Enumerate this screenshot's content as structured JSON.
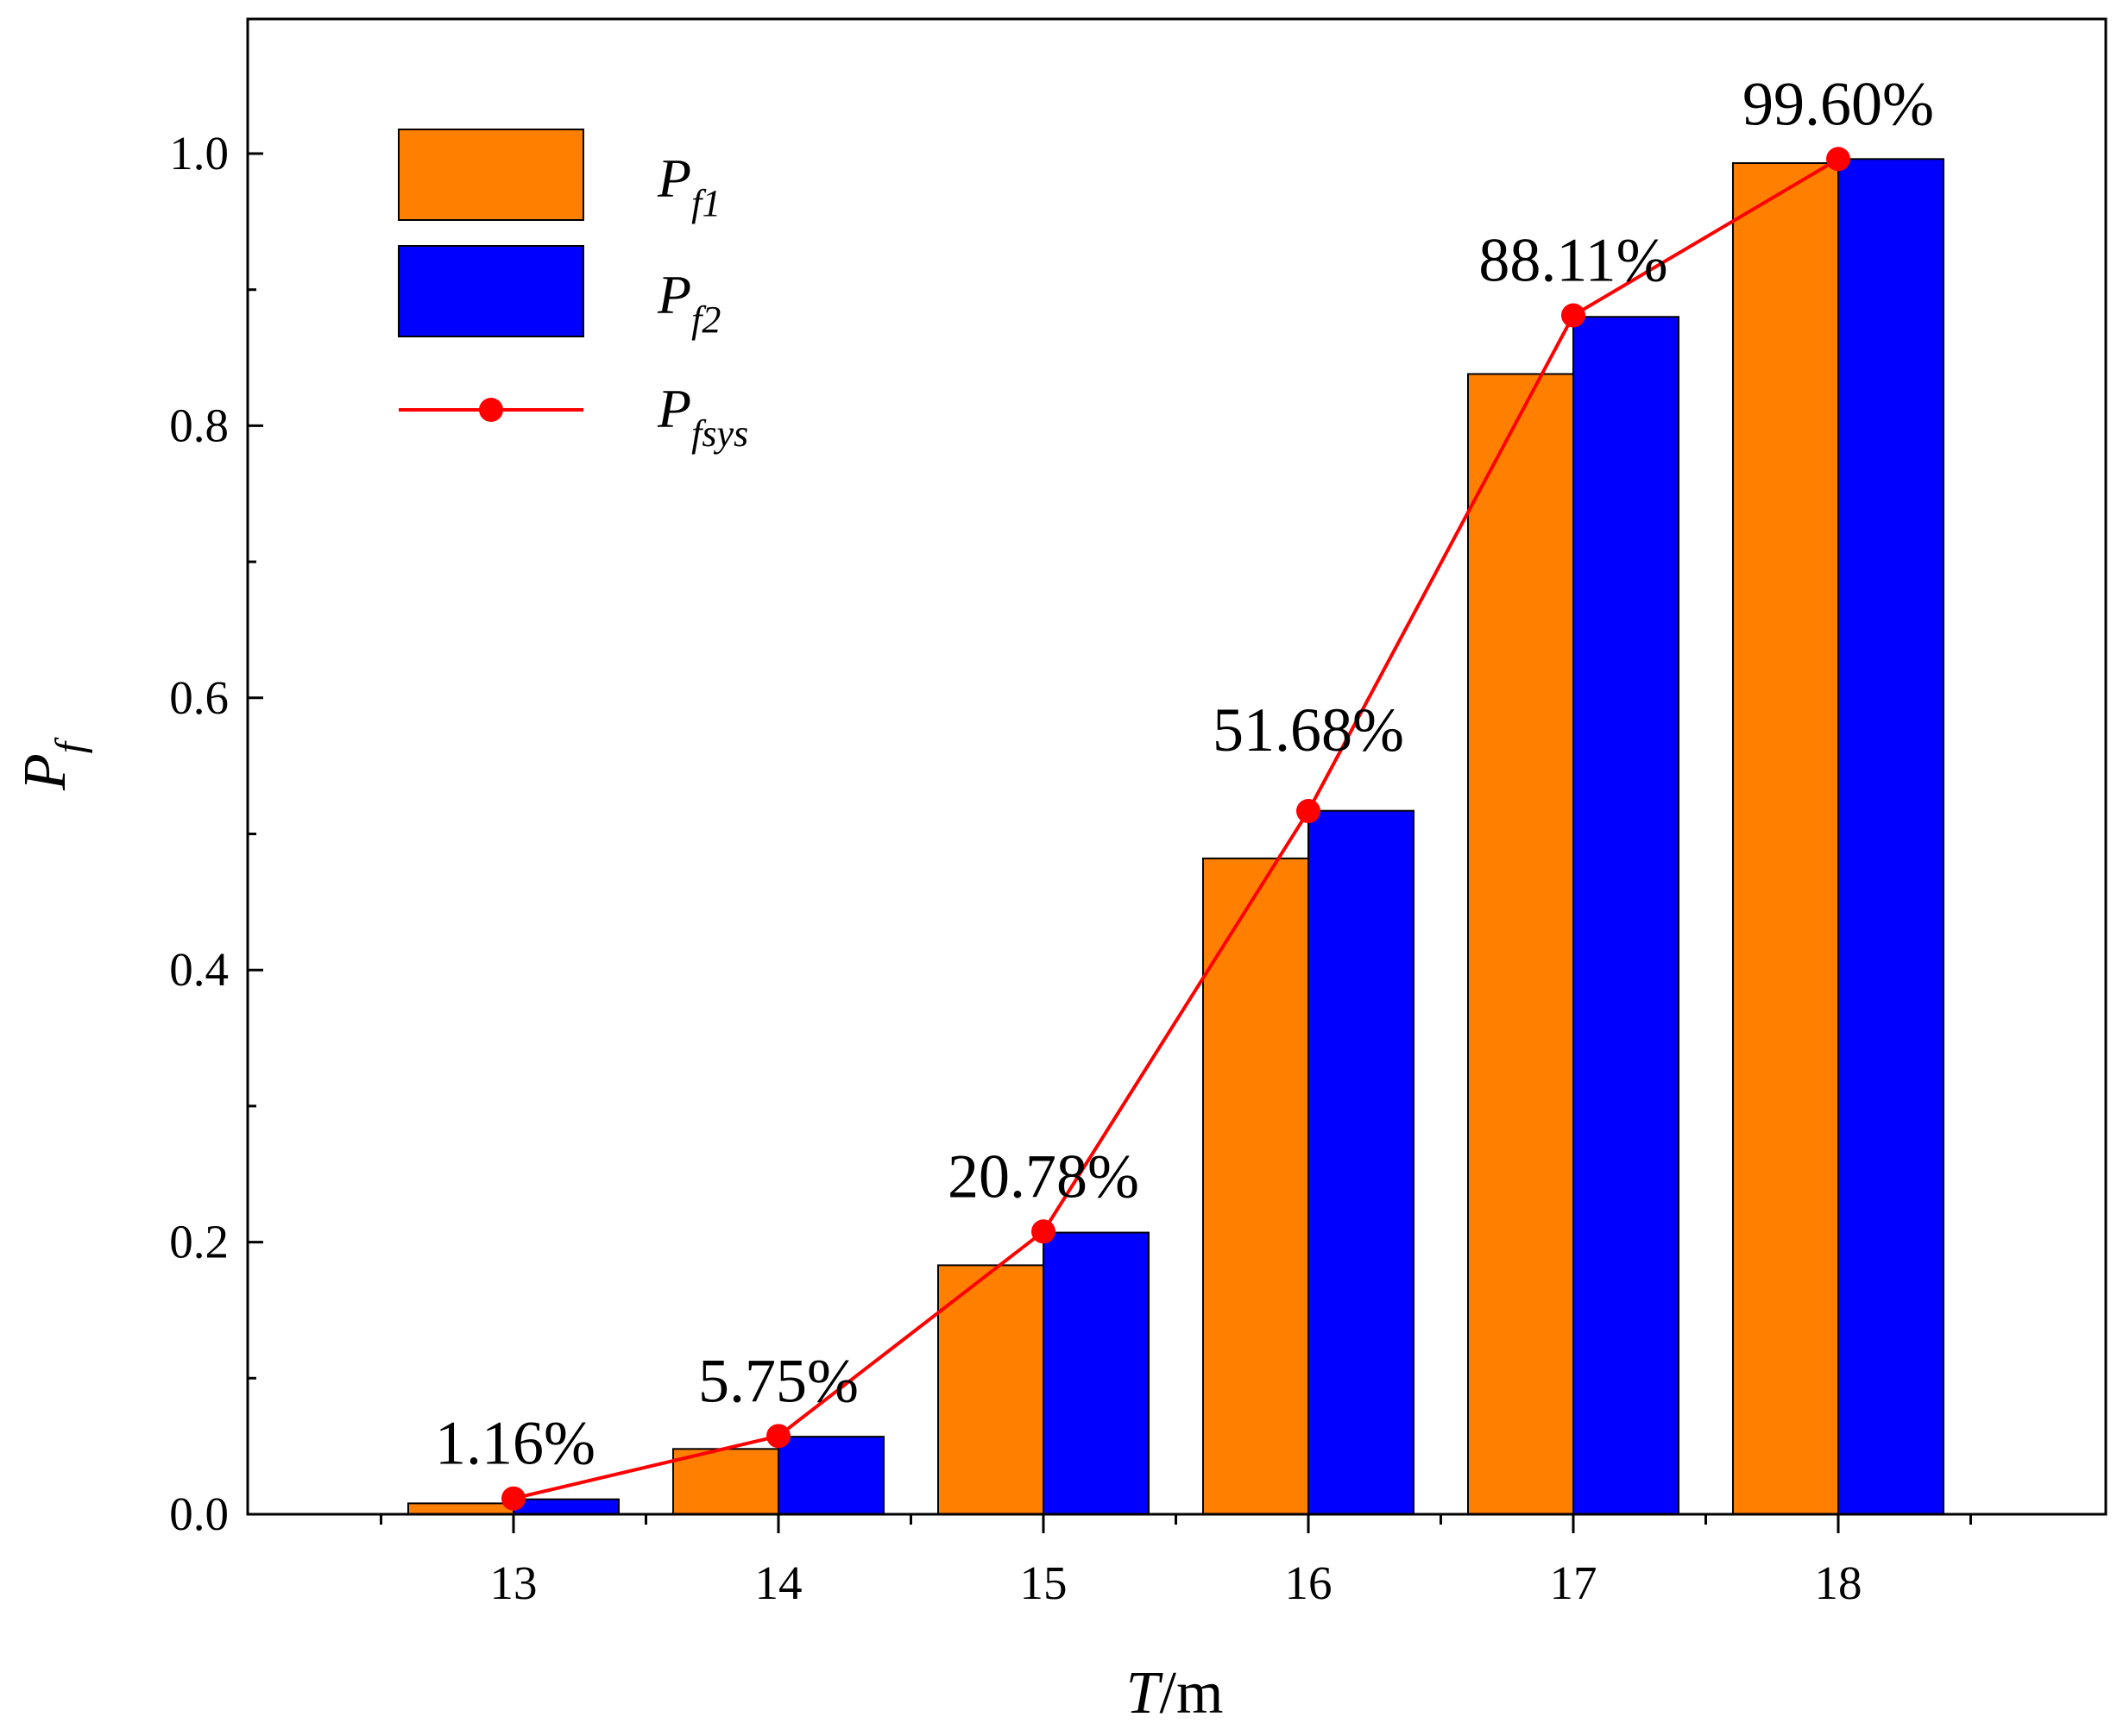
{
  "chart_data": {
    "type": "bar",
    "title": "",
    "xlabel": {
      "main": "T",
      "unit": "/m"
    },
    "ylabel": {
      "main": "P",
      "sub": "f"
    },
    "categories": [
      "13",
      "14",
      "15",
      "16",
      "17",
      "18"
    ],
    "ylim": [
      0,
      1.1
    ],
    "yticks": [
      0.0,
      0.2,
      0.4,
      0.6,
      0.8,
      1.0
    ],
    "ytick_labels": [
      "0.0",
      "0.2",
      "0.4",
      "0.6",
      "0.8",
      "1.0"
    ],
    "grid": false,
    "legend_position": "top-left",
    "series": [
      {
        "name": "Pf1",
        "label_main": "P",
        "label_sub": "f1",
        "type": "bar",
        "color": "#ff8000",
        "values": [
          0.008,
          0.048,
          0.183,
          0.482,
          0.838,
          0.993
        ]
      },
      {
        "name": "Pf2",
        "label_main": "P",
        "label_sub": "f2",
        "type": "bar",
        "color": "#0000ff",
        "values": [
          0.011,
          0.057,
          0.207,
          0.517,
          0.88,
          0.996
        ]
      },
      {
        "name": "Pfsys",
        "label_main": "P",
        "label_sub": "fsys",
        "type": "line",
        "color": "#ff0000",
        "values": [
          0.0116,
          0.0575,
          0.2078,
          0.5168,
          0.8811,
          0.996
        ]
      }
    ],
    "data_labels": [
      "1.16%",
      "5.75%",
      "20.78%",
      "51.68%",
      "88.11%",
      "99.60%"
    ]
  }
}
